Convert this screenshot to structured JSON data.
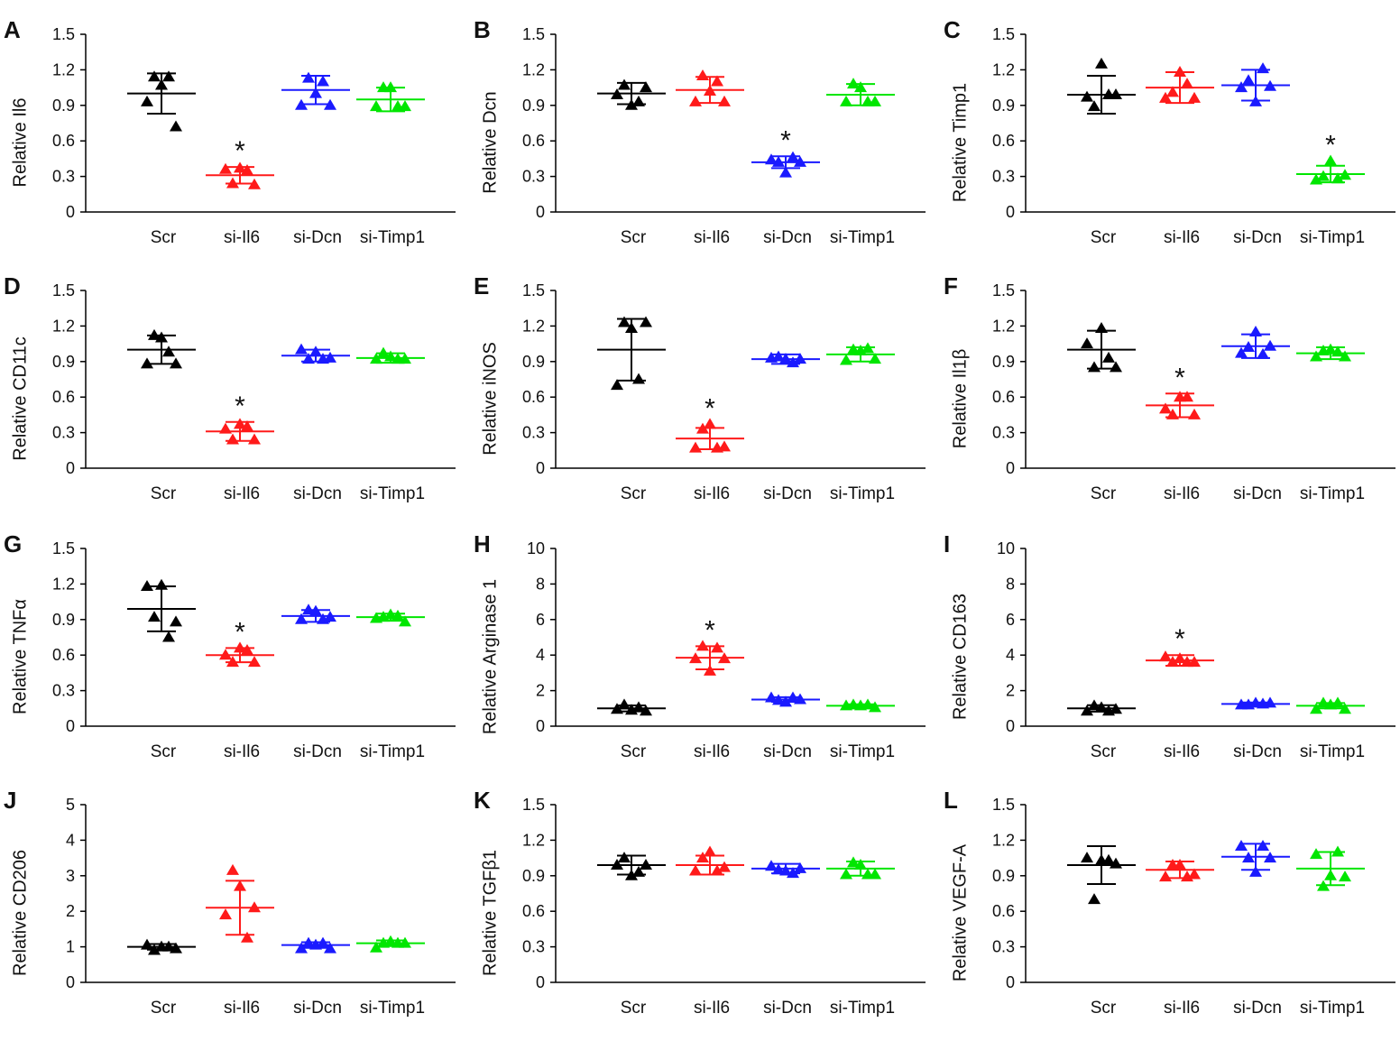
{
  "figure": {
    "title": ""
  },
  "colors": {
    "Scr": "#000000",
    "si-Il6": "#ff1a1a",
    "si-Dcn": "#1a1aff",
    "si-Timp1": "#00e600",
    "axis": "#000000"
  },
  "chart_data": [
    {
      "id": "A",
      "type": "scatter",
      "ylabel": "Relative Il6",
      "ylim": [
        0,
        1.5
      ],
      "yticks": [
        "0",
        "0.3",
        "0.6",
        "0.9",
        "1.2",
        "1.5"
      ],
      "categories": [
        "Scr",
        "si-Il6",
        "si-Dcn",
        "si-Timp1"
      ],
      "series": [
        {
          "name": "Scr",
          "points": [
            0.93,
            1.14,
            1.07,
            1.14,
            0.72
          ],
          "mean": 1.0,
          "sd": 0.17,
          "sig": ""
        },
        {
          "name": "si-Il6",
          "points": [
            0.36,
            0.24,
            0.37,
            0.35,
            0.23
          ],
          "mean": 0.31,
          "sd": 0.07,
          "sig": "*"
        },
        {
          "name": "si-Dcn",
          "points": [
            0.9,
            1.13,
            1.0,
            1.1,
            0.9
          ],
          "mean": 1.03,
          "sd": 0.12,
          "sig": ""
        },
        {
          "name": "si-Timp1",
          "points": [
            0.89,
            1.05,
            1.05,
            0.89,
            0.89
          ],
          "mean": 0.95,
          "sd": 0.1,
          "sig": ""
        }
      ]
    },
    {
      "id": "B",
      "type": "scatter",
      "ylabel": "Relative Dcn",
      "ylim": [
        0,
        1.5
      ],
      "yticks": [
        "0",
        "0.3",
        "0.6",
        "0.9",
        "1.2",
        "1.5"
      ],
      "categories": [
        "Scr",
        "si-Il6",
        "si-Dcn",
        "si-Timp1"
      ],
      "series": [
        {
          "name": "Scr",
          "points": [
            0.99,
            1.07,
            0.9,
            0.93,
            1.05
          ],
          "mean": 1.0,
          "sd": 0.09,
          "sig": ""
        },
        {
          "name": "si-Il6",
          "points": [
            0.93,
            1.15,
            1.02,
            1.1,
            0.93
          ],
          "mean": 1.03,
          "sd": 0.11,
          "sig": ""
        },
        {
          "name": "si-Dcn",
          "points": [
            0.44,
            0.42,
            0.33,
            0.46,
            0.42
          ],
          "mean": 0.42,
          "sd": 0.05,
          "sig": "*"
        },
        {
          "name": "si-Timp1",
          "points": [
            0.93,
            1.08,
            1.05,
            0.93,
            0.93
          ],
          "mean": 0.99,
          "sd": 0.09,
          "sig": ""
        }
      ]
    },
    {
      "id": "C",
      "type": "scatter",
      "ylabel": "Relative Timp1",
      "ylim": [
        0,
        1.5
      ],
      "yticks": [
        "0",
        "0.3",
        "0.6",
        "0.9",
        "1.2",
        "1.5"
      ],
      "categories": [
        "Scr",
        "si-Il6",
        "si-Dcn",
        "si-Timp1"
      ],
      "series": [
        {
          "name": "Scr",
          "points": [
            0.97,
            0.89,
            1.25,
            0.99,
            0.99
          ],
          "mean": 0.99,
          "sd": 0.16,
          "sig": ""
        },
        {
          "name": "si-Il6",
          "points": [
            0.96,
            1.01,
            1.18,
            1.08,
            0.96
          ],
          "mean": 1.05,
          "sd": 0.13,
          "sig": ""
        },
        {
          "name": "si-Dcn",
          "points": [
            1.05,
            1.11,
            0.93,
            1.21,
            1.06
          ],
          "mean": 1.07,
          "sd": 0.13,
          "sig": ""
        },
        {
          "name": "si-Timp1",
          "points": [
            0.27,
            0.3,
            0.43,
            0.28,
            0.31
          ],
          "mean": 0.32,
          "sd": 0.07,
          "sig": "*"
        }
      ]
    },
    {
      "id": "D",
      "type": "scatter",
      "ylabel": "Relative CD11c",
      "ylim": [
        0,
        1.5
      ],
      "yticks": [
        "0",
        "0.3",
        "0.6",
        "0.9",
        "1.2",
        "1.5"
      ],
      "categories": [
        "Scr",
        "si-Il6",
        "si-Dcn",
        "si-Timp1"
      ],
      "series": [
        {
          "name": "Scr",
          "points": [
            0.88,
            1.12,
            1.1,
            0.98,
            0.88
          ],
          "mean": 1.0,
          "sd": 0.12,
          "sig": ""
        },
        {
          "name": "si-Il6",
          "points": [
            0.33,
            0.24,
            0.37,
            0.35,
            0.24
          ],
          "mean": 0.31,
          "sd": 0.08,
          "sig": "*"
        },
        {
          "name": "si-Dcn",
          "points": [
            1.0,
            0.92,
            0.98,
            0.92,
            0.93
          ],
          "mean": 0.95,
          "sd": 0.05,
          "sig": ""
        },
        {
          "name": "si-Timp1",
          "points": [
            0.92,
            0.97,
            0.94,
            0.92,
            0.92
          ],
          "mean": 0.93,
          "sd": 0.04,
          "sig": ""
        }
      ]
    },
    {
      "id": "E",
      "type": "scatter",
      "ylabel": "Relative iNOS",
      "ylim": [
        0,
        1.5
      ],
      "yticks": [
        "0",
        "0.3",
        "0.6",
        "0.9",
        "1.2",
        "1.5"
      ],
      "categories": [
        "Scr",
        "si-Il6",
        "si-Dcn",
        "si-Timp1"
      ],
      "series": [
        {
          "name": "Scr",
          "points": [
            0.7,
            1.23,
            1.18,
            0.75,
            1.23
          ],
          "mean": 1.0,
          "sd": 0.26,
          "sig": ""
        },
        {
          "name": "si-Il6",
          "points": [
            0.17,
            0.33,
            0.37,
            0.17,
            0.18
          ],
          "mean": 0.25,
          "sd": 0.09,
          "sig": "*"
        },
        {
          "name": "si-Dcn",
          "points": [
            0.93,
            0.94,
            0.92,
            0.89,
            0.92
          ],
          "mean": 0.92,
          "sd": 0.04,
          "sig": ""
        },
        {
          "name": "si-Timp1",
          "points": [
            0.91,
            1.0,
            0.99,
            1.01,
            0.92
          ],
          "mean": 0.96,
          "sd": 0.06,
          "sig": ""
        }
      ]
    },
    {
      "id": "F",
      "type": "scatter",
      "ylabel": "Relative Il1β",
      "ylim": [
        0,
        1.5
      ],
      "yticks": [
        "0",
        "0.3",
        "0.6",
        "0.9",
        "1.2",
        "1.5"
      ],
      "categories": [
        "Scr",
        "si-Il6",
        "si-Dcn",
        "si-Timp1"
      ],
      "series": [
        {
          "name": "Scr",
          "points": [
            1.05,
            0.85,
            1.18,
            0.93,
            0.85
          ],
          "mean": 1.0,
          "sd": 0.16,
          "sig": ""
        },
        {
          "name": "si-Il6",
          "points": [
            0.5,
            0.45,
            0.6,
            0.6,
            0.45
          ],
          "mean": 0.53,
          "sd": 0.1,
          "sig": "*"
        },
        {
          "name": "si-Dcn",
          "points": [
            0.97,
            1.02,
            1.15,
            0.96,
            1.03
          ],
          "mean": 1.03,
          "sd": 0.1,
          "sig": ""
        },
        {
          "name": "si-Timp1",
          "points": [
            0.94,
            0.99,
            1.0,
            0.98,
            0.94
          ],
          "mean": 0.97,
          "sd": 0.05,
          "sig": ""
        }
      ]
    },
    {
      "id": "G",
      "type": "scatter",
      "ylabel": "Relative TNFα",
      "ylim": [
        0,
        1.5
      ],
      "yticks": [
        "0",
        "0.3",
        "0.6",
        "0.9",
        "1.2",
        "1.5"
      ],
      "categories": [
        "Scr",
        "si-Il6",
        "si-Dcn",
        "si-Timp1"
      ],
      "series": [
        {
          "name": "Scr",
          "points": [
            1.18,
            0.92,
            1.19,
            0.75,
            0.88
          ],
          "mean": 0.99,
          "sd": 0.19,
          "sig": ""
        },
        {
          "name": "si-Il6",
          "points": [
            0.6,
            0.54,
            0.66,
            0.64,
            0.54
          ],
          "mean": 0.6,
          "sd": 0.06,
          "sig": "*"
        },
        {
          "name": "si-Dcn",
          "points": [
            0.9,
            0.98,
            0.97,
            0.9,
            0.92
          ],
          "mean": 0.93,
          "sd": 0.05,
          "sig": ""
        },
        {
          "name": "si-Timp1",
          "points": [
            0.91,
            0.92,
            0.94,
            0.93,
            0.88
          ],
          "mean": 0.92,
          "sd": 0.03,
          "sig": ""
        }
      ]
    },
    {
      "id": "H",
      "type": "scatter",
      "ylabel": "Relative Arginase 1",
      "ylim": [
        0,
        10
      ],
      "yticks": [
        "0",
        "2",
        "4",
        "6",
        "8",
        "10"
      ],
      "categories": [
        "Scr",
        "si-Il6",
        "si-Dcn",
        "si-Timp1"
      ],
      "series": [
        {
          "name": "Scr",
          "points": [
            0.95,
            1.2,
            0.9,
            1.05,
            0.85
          ],
          "mean": 1.0,
          "sd": 0.17,
          "sig": ""
        },
        {
          "name": "si-Il6",
          "points": [
            3.8,
            4.5,
            3.1,
            4.4,
            3.8
          ],
          "mean": 3.85,
          "sd": 0.65,
          "sig": "*"
        },
        {
          "name": "si-Dcn",
          "points": [
            1.6,
            1.45,
            1.35,
            1.6,
            1.5
          ],
          "mean": 1.5,
          "sd": 0.13,
          "sig": ""
        },
        {
          "name": "si-Timp1",
          "points": [
            1.15,
            1.2,
            1.15,
            1.2,
            1.05
          ],
          "mean": 1.15,
          "sd": 0.08,
          "sig": ""
        }
      ]
    },
    {
      "id": "I",
      "type": "scatter",
      "ylabel": "Relative CD163",
      "ylim": [
        0,
        10
      ],
      "yticks": [
        "0",
        "2",
        "4",
        "6",
        "8",
        "10"
      ],
      "categories": [
        "Scr",
        "si-Il6",
        "si-Dcn",
        "si-Timp1"
      ],
      "series": [
        {
          "name": "Scr",
          "points": [
            0.85,
            1.15,
            1.05,
            0.85,
            0.95
          ],
          "mean": 1.0,
          "sd": 0.18,
          "sig": ""
        },
        {
          "name": "si-Il6",
          "points": [
            3.9,
            3.6,
            3.8,
            3.6,
            3.6
          ],
          "mean": 3.7,
          "sd": 0.3,
          "sig": "*"
        },
        {
          "name": "si-Dcn",
          "points": [
            1.2,
            1.2,
            1.3,
            1.25,
            1.3
          ],
          "mean": 1.25,
          "sd": 0.08,
          "sig": ""
        },
        {
          "name": "si-Timp1",
          "points": [
            0.95,
            1.3,
            1.2,
            1.3,
            0.95
          ],
          "mean": 1.15,
          "sd": 0.15,
          "sig": ""
        }
      ]
    },
    {
      "id": "J",
      "type": "scatter",
      "ylabel": "Relative CD206",
      "ylim": [
        0,
        5
      ],
      "yticks": [
        "0",
        "1",
        "2",
        "3",
        "4",
        "5"
      ],
      "categories": [
        "Scr",
        "si-Il6",
        "si-Dcn",
        "si-Timp1"
      ],
      "series": [
        {
          "name": "Scr",
          "points": [
            1.05,
            0.9,
            1.0,
            1.0,
            0.95
          ],
          "mean": 1.0,
          "sd": 0.08,
          "sig": ""
        },
        {
          "name": "si-Il6",
          "points": [
            1.9,
            3.15,
            2.7,
            1.25,
            2.1
          ],
          "mean": 2.1,
          "sd": 0.76,
          "sig": ""
        },
        {
          "name": "si-Dcn",
          "points": [
            0.95,
            1.1,
            1.05,
            1.1,
            0.95
          ],
          "mean": 1.05,
          "sd": 0.08,
          "sig": ""
        },
        {
          "name": "si-Timp1",
          "points": [
            0.97,
            1.1,
            1.15,
            1.1,
            1.1
          ],
          "mean": 1.1,
          "sd": 0.08,
          "sig": ""
        }
      ]
    },
    {
      "id": "K",
      "type": "scatter",
      "ylabel": "Relative TGFβ1",
      "ylim": [
        0,
        1.5
      ],
      "yticks": [
        "0",
        "0.3",
        "0.6",
        "0.9",
        "1.2",
        "1.5"
      ],
      "categories": [
        "Scr",
        "si-Il6",
        "si-Dcn",
        "si-Timp1"
      ],
      "series": [
        {
          "name": "Scr",
          "points": [
            0.99,
            1.05,
            0.9,
            0.93,
            0.99
          ],
          "mean": 0.99,
          "sd": 0.08,
          "sig": ""
        },
        {
          "name": "si-Il6",
          "points": [
            0.94,
            1.05,
            1.1,
            0.94,
            0.97
          ],
          "mean": 0.99,
          "sd": 0.08,
          "sig": ""
        },
        {
          "name": "si-Dcn",
          "points": [
            0.98,
            0.95,
            0.94,
            0.92,
            0.96
          ],
          "mean": 0.96,
          "sd": 0.04,
          "sig": ""
        },
        {
          "name": "si-Timp1",
          "points": [
            0.91,
            1.01,
            0.99,
            0.91,
            0.91
          ],
          "mean": 0.96,
          "sd": 0.06,
          "sig": ""
        }
      ]
    },
    {
      "id": "L",
      "type": "scatter",
      "ylabel": "Relative VEGF-A",
      "ylim": [
        0,
        1.5
      ],
      "yticks": [
        "0",
        "0.3",
        "0.6",
        "0.9",
        "1.2",
        "1.5"
      ],
      "categories": [
        "Scr",
        "si-Il6",
        "si-Dcn",
        "si-Timp1"
      ],
      "series": [
        {
          "name": "Scr",
          "points": [
            1.05,
            0.7,
            1.03,
            1.03,
            1.0
          ],
          "mean": 0.99,
          "sd": 0.16,
          "sig": ""
        },
        {
          "name": "si-Il6",
          "points": [
            0.89,
            0.99,
            0.99,
            0.89,
            0.91
          ],
          "mean": 0.95,
          "sd": 0.07,
          "sig": ""
        },
        {
          "name": "si-Dcn",
          "points": [
            1.15,
            1.05,
            0.93,
            1.15,
            1.05
          ],
          "mean": 1.06,
          "sd": 0.11,
          "sig": ""
        },
        {
          "name": "si-Timp1",
          "points": [
            1.08,
            0.81,
            0.9,
            1.1,
            0.89
          ],
          "mean": 0.96,
          "sd": 0.14,
          "sig": ""
        }
      ]
    }
  ]
}
